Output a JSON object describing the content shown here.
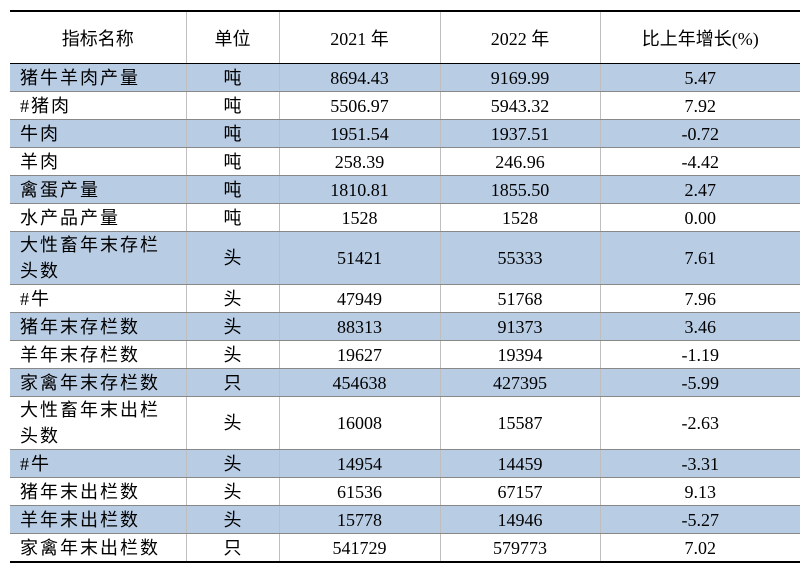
{
  "table": {
    "header": [
      "指标名称",
      "单位",
      "2021 年",
      "2022 年",
      "比上年增长(%)"
    ],
    "rows": [
      [
        "猪牛羊肉产量",
        "吨",
        "8694.43",
        "9169.99",
        "5.47"
      ],
      [
        "#猪肉",
        "吨",
        "5506.97",
        "5943.32",
        "7.92"
      ],
      [
        "牛肉",
        "吨",
        "1951.54",
        "1937.51",
        "-0.72"
      ],
      [
        "羊肉",
        "吨",
        "258.39",
        "246.96",
        "-4.42"
      ],
      [
        "禽蛋产量",
        "吨",
        "1810.81",
        "1855.50",
        "2.47"
      ],
      [
        "水产品产量",
        "吨",
        "1528",
        "1528",
        "0.00"
      ],
      [
        "大性畜年末存栏头数",
        "头",
        "51421",
        "55333",
        "7.61"
      ],
      [
        "#牛",
        "头",
        "47949",
        "51768",
        "7.96"
      ],
      [
        "猪年末存栏数",
        "头",
        "88313",
        "91373",
        "3.46"
      ],
      [
        "羊年末存栏数",
        "头",
        "19627",
        "19394",
        "-1.19"
      ],
      [
        "家禽年末存栏数",
        "只",
        "454638",
        "427395",
        "-5.99"
      ],
      [
        "大性畜年末出栏头数",
        "头",
        "16008",
        "15587",
        "-2.63"
      ],
      [
        "#牛",
        "头",
        "14954",
        "14459",
        "-3.31"
      ],
      [
        "猪年末出栏数",
        "头",
        "61536",
        "67157",
        "9.13"
      ],
      [
        "羊年末出栏数",
        "头",
        "15778",
        "14946",
        "-5.27"
      ],
      [
        "家禽年末出栏数",
        "只",
        "541729",
        "579773",
        "7.02"
      ]
    ]
  }
}
